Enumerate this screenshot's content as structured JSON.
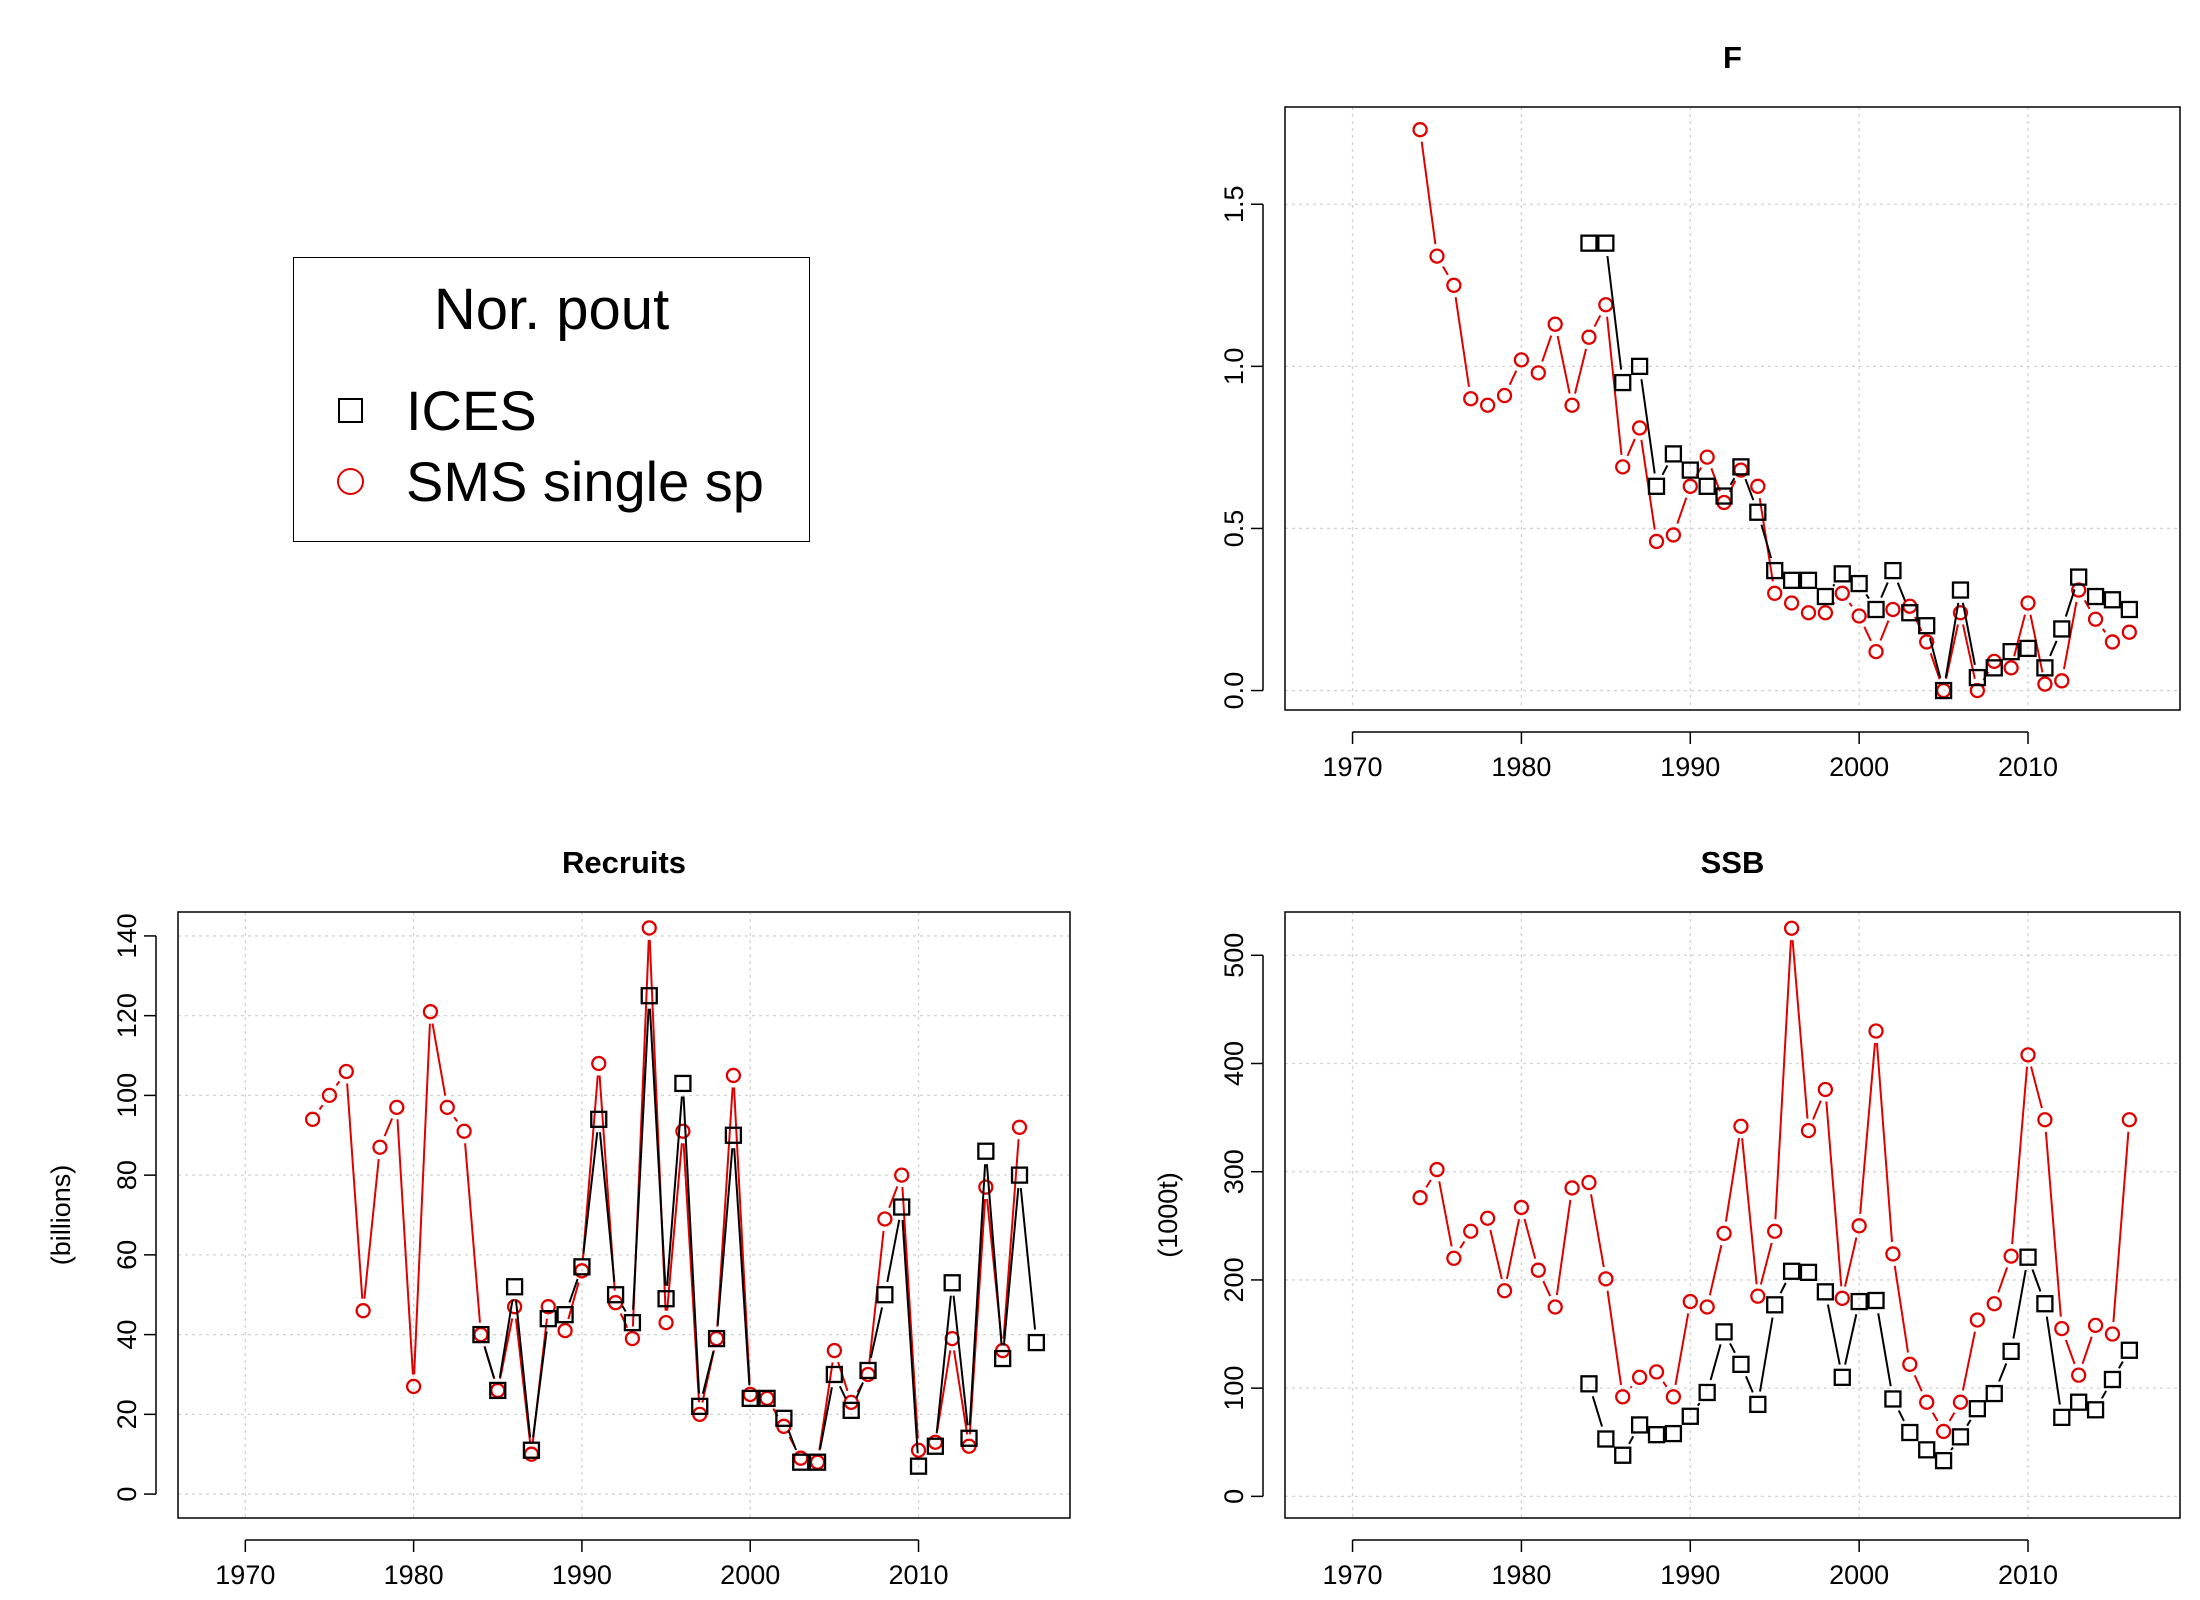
{
  "legend": {
    "title": "Nor. pout",
    "entries": [
      {
        "label": "ICES",
        "symbol": "square",
        "color": "#000000"
      },
      {
        "label": "SMS single sp",
        "symbol": "circle",
        "color": "#e00000"
      }
    ]
  },
  "colors": {
    "ices": "#000000",
    "sms": "#e00000",
    "grid": "#d3d3d3",
    "axis": "#000000"
  },
  "chart_data": [
    {
      "id": "F",
      "type": "line",
      "title": "F",
      "ylabel": "",
      "xlim": [
        1966,
        2019
      ],
      "ylim": [
        -0.06,
        1.8
      ],
      "xticks": [
        1970,
        1980,
        1990,
        2000,
        2010
      ],
      "yticks": [
        0.0,
        0.5,
        1.0,
        1.5
      ],
      "ytick_labels": [
        "0.0",
        "0.5",
        "1.0",
        "1.5"
      ],
      "grid": true,
      "series": [
        {
          "name": "SMS single sp",
          "color": "#e00000",
          "marker": "circle",
          "x": [
            1974,
            1975,
            1976,
            1977,
            1978,
            1979,
            1980,
            1981,
            1982,
            1983,
            1984,
            1985,
            1986,
            1987,
            1988,
            1989,
            1990,
            1991,
            1992,
            1993,
            1994,
            1995,
            1996,
            1997,
            1998,
            1999,
            2000,
            2001,
            2002,
            2003,
            2004,
            2005,
            2006,
            2007,
            2008,
            2009,
            2010,
            2011,
            2012,
            2013,
            2014,
            2015,
            2016
          ],
          "y": [
            1.73,
            1.34,
            1.25,
            0.9,
            0.88,
            0.91,
            1.02,
            0.98,
            1.13,
            0.88,
            1.09,
            1.19,
            0.69,
            0.81,
            0.46,
            0.48,
            0.63,
            0.72,
            0.58,
            0.68,
            0.63,
            0.3,
            0.27,
            0.24,
            0.24,
            0.3,
            0.23,
            0.12,
            0.25,
            0.26,
            0.15,
            0.0,
            0.24,
            0.0,
            0.09,
            0.07,
            0.27,
            0.02,
            0.03,
            0.31,
            0.22,
            0.15,
            0.18
          ]
        },
        {
          "name": "ICES",
          "color": "#000000",
          "marker": "square",
          "x": [
            1984,
            1985,
            1986,
            1987,
            1988,
            1989,
            1990,
            1991,
            1992,
            1993,
            1994,
            1995,
            1996,
            1997,
            1998,
            1999,
            2000,
            2001,
            2002,
            2003,
            2004,
            2005,
            2006,
            2007,
            2008,
            2009,
            2010,
            2011,
            2012,
            2013,
            2014,
            2015,
            2016
          ],
          "y": [
            1.38,
            1.38,
            0.95,
            1.0,
            0.63,
            0.73,
            0.68,
            0.63,
            0.6,
            0.69,
            0.55,
            0.37,
            0.34,
            0.34,
            0.29,
            0.36,
            0.33,
            0.25,
            0.37,
            0.24,
            0.2,
            0.0,
            0.31,
            0.04,
            0.07,
            0.12,
            0.13,
            0.07,
            0.19,
            0.35,
            0.29,
            0.28,
            0.25
          ]
        }
      ]
    },
    {
      "id": "Recruits",
      "type": "line",
      "title": "Recruits",
      "ylabel": "(billions)",
      "xlim": [
        1966,
        2019
      ],
      "ylim": [
        -6,
        146
      ],
      "xticks": [
        1970,
        1980,
        1990,
        2000,
        2010
      ],
      "yticks": [
        0,
        20,
        40,
        60,
        80,
        100,
        120,
        140
      ],
      "ytick_labels": [
        "0",
        "20",
        "40",
        "60",
        "80",
        "100",
        "120",
        "140"
      ],
      "grid": true,
      "series": [
        {
          "name": "SMS single sp",
          "color": "#e00000",
          "marker": "circle",
          "x": [
            1974,
            1975,
            1976,
            1977,
            1978,
            1979,
            1980,
            1981,
            1982,
            1983,
            1984,
            1985,
            1986,
            1987,
            1988,
            1989,
            1990,
            1991,
            1992,
            1993,
            1994,
            1995,
            1996,
            1997,
            1998,
            1999,
            2000,
            2001,
            2002,
            2003,
            2004,
            2005,
            2006,
            2007,
            2008,
            2009,
            2010,
            2011,
            2012,
            2013,
            2014,
            2015,
            2016
          ],
          "y": [
            94,
            100,
            106,
            46,
            87,
            97,
            27,
            121,
            97,
            91,
            40,
            26,
            47,
            10,
            47,
            41,
            56,
            108,
            48,
            39,
            142,
            43,
            91,
            20,
            39,
            105,
            25,
            24,
            17,
            9,
            8,
            36,
            23,
            30,
            69,
            80,
            11,
            13,
            39,
            12,
            77,
            36,
            92
          ]
        },
        {
          "name": "ICES",
          "color": "#000000",
          "marker": "square",
          "x": [
            1984,
            1985,
            1986,
            1987,
            1988,
            1989,
            1990,
            1991,
            1992,
            1993,
            1994,
            1995,
            1996,
            1997,
            1998,
            1999,
            2000,
            2001,
            2002,
            2003,
            2004,
            2005,
            2006,
            2007,
            2008,
            2009,
            2010,
            2011,
            2012,
            2013,
            2014,
            2015,
            2016,
            2017
          ],
          "y": [
            40,
            26,
            52,
            11,
            44,
            45,
            57,
            94,
            50,
            43,
            125,
            49,
            103,
            22,
            39,
            90,
            24,
            24,
            19,
            8,
            8,
            30,
            21,
            31,
            50,
            72,
            7,
            12,
            53,
            14,
            86,
            34,
            80,
            38
          ]
        }
      ]
    },
    {
      "id": "SSB",
      "type": "line",
      "title": "SSB",
      "ylabel": "(1000t)",
      "xlim": [
        1966,
        2019
      ],
      "ylim": [
        -20,
        540
      ],
      "xticks": [
        1970,
        1980,
        1990,
        2000,
        2010
      ],
      "yticks": [
        0,
        100,
        200,
        300,
        400,
        500
      ],
      "ytick_labels": [
        "0",
        "100",
        "200",
        "300",
        "400",
        "500"
      ],
      "grid": true,
      "series": [
        {
          "name": "SMS single sp",
          "color": "#e00000",
          "marker": "circle",
          "x": [
            1974,
            1975,
            1976,
            1977,
            1978,
            1979,
            1980,
            1981,
            1982,
            1983,
            1984,
            1985,
            1986,
            1987,
            1988,
            1989,
            1990,
            1991,
            1992,
            1993,
            1994,
            1995,
            1996,
            1997,
            1998,
            1999,
            2000,
            2001,
            2002,
            2003,
            2004,
            2005,
            2006,
            2007,
            2008,
            2009,
            2010,
            2011,
            2012,
            2013,
            2014,
            2015,
            2016
          ],
          "y": [
            276,
            302,
            220,
            245,
            257,
            190,
            267,
            209,
            175,
            285,
            290,
            201,
            92,
            110,
            115,
            92,
            180,
            175,
            243,
            342,
            185,
            245,
            525,
            338,
            376,
            183,
            250,
            430,
            224,
            122,
            87,
            60,
            87,
            163,
            178,
            222,
            408,
            348,
            155,
            112,
            158,
            150,
            348
          ]
        },
        {
          "name": "ICES",
          "color": "#000000",
          "marker": "square",
          "x": [
            1984,
            1985,
            1986,
            1987,
            1988,
            1989,
            1990,
            1991,
            1992,
            1993,
            1994,
            1995,
            1996,
            1997,
            1998,
            1999,
            2000,
            2001,
            2002,
            2003,
            2004,
            2005,
            2006,
            2007,
            2008,
            2009,
            2010,
            2011,
            2012,
            2013,
            2014,
            2015,
            2016
          ],
          "y": [
            104,
            53,
            38,
            66,
            57,
            58,
            74,
            96,
            152,
            122,
            85,
            177,
            208,
            207,
            189,
            110,
            180,
            181,
            90,
            59,
            43,
            33,
            55,
            81,
            95,
            134,
            221,
            178,
            73,
            87,
            80,
            108,
            135
          ]
        }
      ]
    }
  ]
}
